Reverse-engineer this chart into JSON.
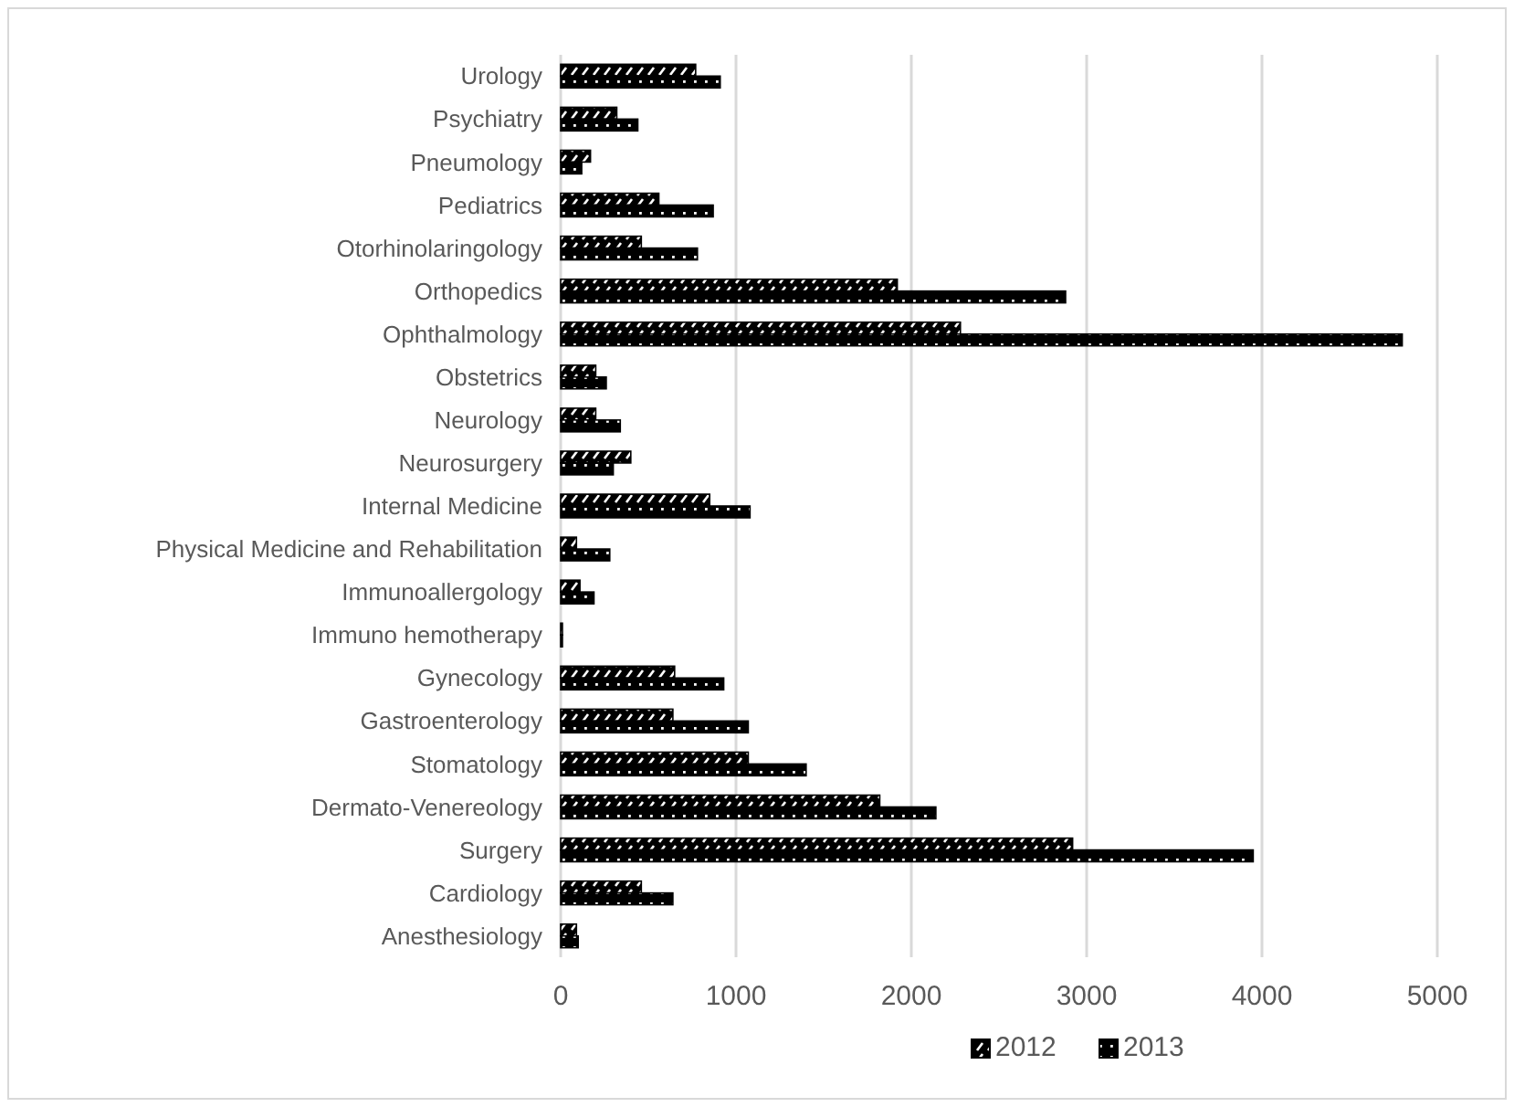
{
  "chart_data": {
    "type": "bar",
    "orientation": "horizontal",
    "categories": [
      "Urology",
      "Psychiatry",
      "Pneumology",
      "Pediatrics",
      "Otorhinolaringology",
      "Orthopedics",
      "Ophthalmology",
      "Obstetrics",
      "Neurology",
      "Neurosurgery",
      "Internal Medicine",
      "Physical Medicine and Rehabilitation",
      "Immunoallergology",
      "Immuno hemotherapy",
      "Gynecology",
      "Gastroenterology",
      "Stomatology",
      "Dermato-Venereology",
      "Surgery",
      "Cardiology",
      "Anesthesiology"
    ],
    "series": [
      {
        "name": "2012",
        "color": "#000000",
        "values": [
          770,
          320,
          170,
          560,
          460,
          1920,
          2280,
          200,
          200,
          400,
          850,
          90,
          110,
          10,
          650,
          640,
          1070,
          1820,
          2920,
          460,
          90
        ]
      },
      {
        "name": "2013",
        "color": "#000000",
        "values": [
          910,
          440,
          120,
          870,
          780,
          2880,
          4800,
          260,
          340,
          300,
          1080,
          280,
          190,
          10,
          930,
          1070,
          1400,
          2140,
          3950,
          640,
          100
        ]
      }
    ],
    "xlim": [
      0,
      5000
    ],
    "xticks": [
      0,
      1000,
      2000,
      3000,
      4000,
      5000
    ],
    "grid": "x",
    "legend": "bottom"
  }
}
